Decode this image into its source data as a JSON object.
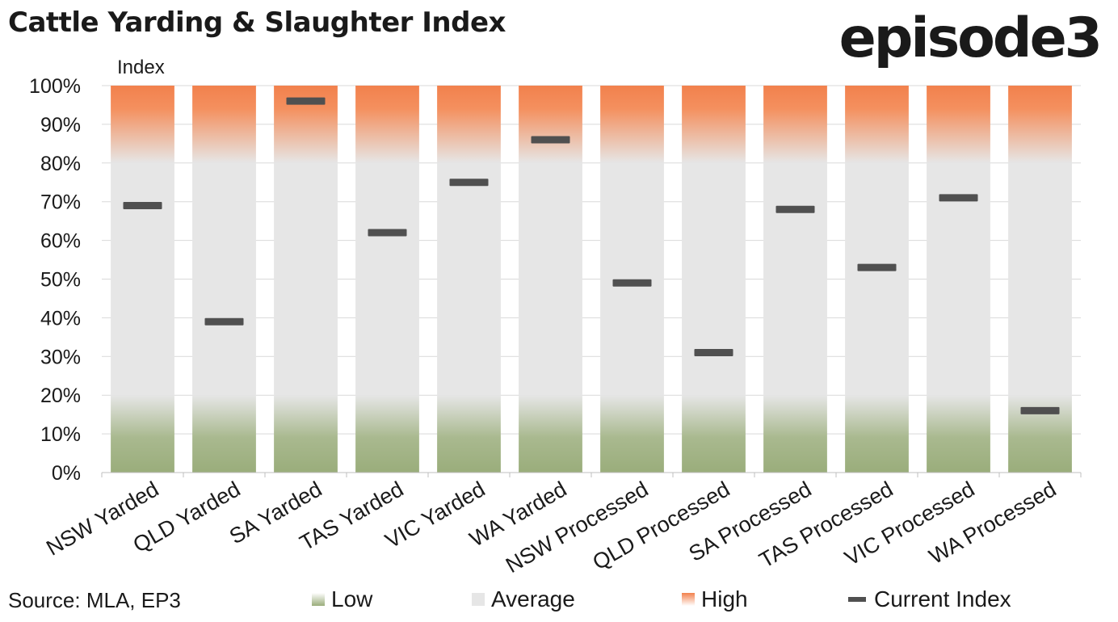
{
  "header": {
    "title": "Cattle Yarding & Slaughter Index",
    "logo": "episode3",
    "source": "Source: MLA, EP3"
  },
  "legend": {
    "low": "Low",
    "average": "Average",
    "high": "High",
    "current": "Current Index"
  },
  "colors": {
    "low": "#9aad7b",
    "average": "#e6e6e6",
    "high": "#f2814d",
    "current": "#505050",
    "grid": "#d9d9d9"
  },
  "chart_data": {
    "type": "bar",
    "ylabel": "Index",
    "ylim": [
      0,
      100
    ],
    "yticks": [
      0,
      10,
      20,
      30,
      40,
      50,
      60,
      70,
      80,
      90,
      100
    ],
    "ytick_labels": [
      "0%",
      "10%",
      "20%",
      "30%",
      "40%",
      "50%",
      "60%",
      "70%",
      "80%",
      "90%",
      "100%"
    ],
    "categories": [
      "NSW Yarded",
      "QLD Yarded",
      "SA Yarded",
      "TAS Yarded",
      "VIC Yarded",
      "WA Yarded",
      "NSW Processed",
      "QLD Processed",
      "SA Processed",
      "TAS Processed",
      "VIC Processed",
      "WA Processed"
    ],
    "bands": [
      {
        "name": "Low",
        "from": 0,
        "to": 20
      },
      {
        "name": "Average",
        "from": 20,
        "to": 80
      },
      {
        "name": "High",
        "from": 80,
        "to": 100
      }
    ],
    "series": [
      {
        "name": "Current Index",
        "values": [
          69,
          39,
          96,
          62,
          75,
          86,
          49,
          31,
          68,
          53,
          71,
          16
        ]
      }
    ],
    "grid": true,
    "legend_position": "bottom"
  }
}
